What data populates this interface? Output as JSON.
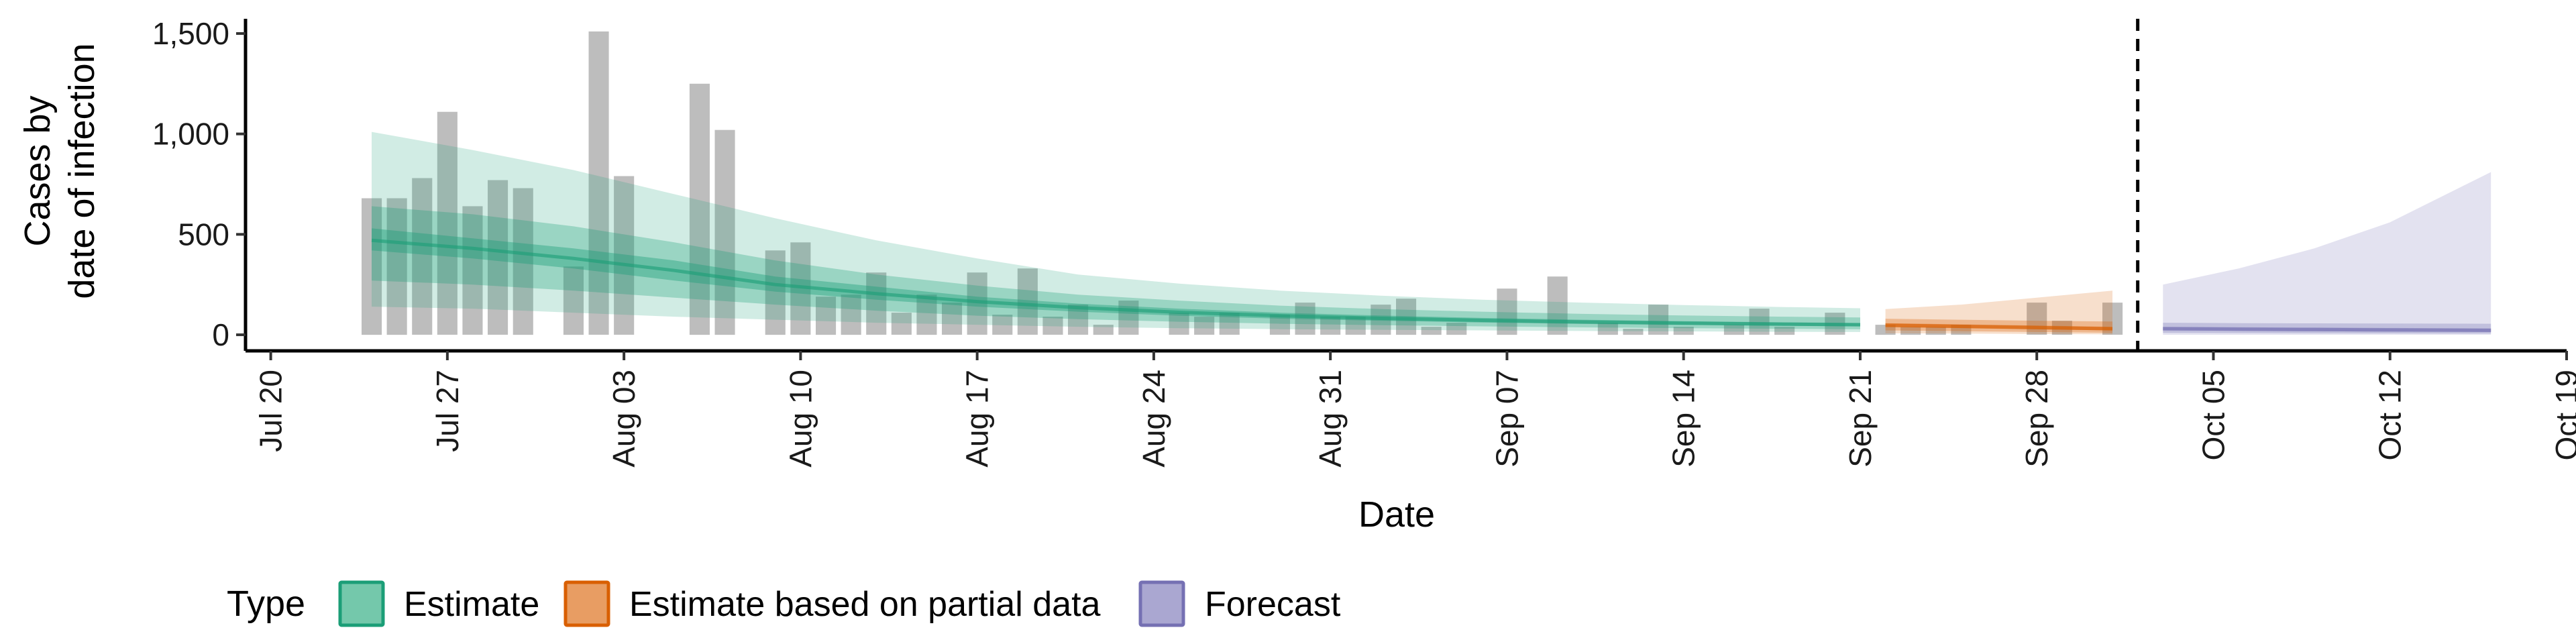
{
  "chart_data": {
    "type": "bar",
    "xlabel": "Date",
    "ylabel_lines": [
      "Cases by",
      "date of infection"
    ],
    "xlim": [
      "2020-07-19",
      "2020-10-19"
    ],
    "ylim": [
      -80,
      1600
    ],
    "x_ticks": [
      {
        "date": "2020-07-20",
        "label": "Jul 20"
      },
      {
        "date": "2020-07-27",
        "label": "Jul 27"
      },
      {
        "date": "2020-08-03",
        "label": "Aug 03"
      },
      {
        "date": "2020-08-10",
        "label": "Aug 10"
      },
      {
        "date": "2020-08-17",
        "label": "Aug 17"
      },
      {
        "date": "2020-08-24",
        "label": "Aug 24"
      },
      {
        "date": "2020-08-31",
        "label": "Aug 31"
      },
      {
        "date": "2020-09-07",
        "label": "Sep 07"
      },
      {
        "date": "2020-09-14",
        "label": "Sep 14"
      },
      {
        "date": "2020-09-21",
        "label": "Sep 21"
      },
      {
        "date": "2020-09-28",
        "label": "Sep 28"
      },
      {
        "date": "2020-10-05",
        "label": "Oct 05"
      },
      {
        "date": "2020-10-12",
        "label": "Oct 12"
      },
      {
        "date": "2020-10-19",
        "label": "Oct 19"
      }
    ],
    "y_ticks": [
      {
        "value": 0,
        "label": "0"
      },
      {
        "value": 500,
        "label": "500"
      },
      {
        "value": 1000,
        "label": "1,000"
      },
      {
        "value": 1500,
        "label": "1,500"
      }
    ],
    "cases": {
      "dates": [
        "2020-07-24",
        "2020-07-25",
        "2020-07-26",
        "2020-07-27",
        "2020-07-28",
        "2020-07-29",
        "2020-07-30",
        "2020-07-31",
        "2020-08-01",
        "2020-08-02",
        "2020-08-03",
        "2020-08-04",
        "2020-08-05",
        "2020-08-06",
        "2020-08-07",
        "2020-08-08",
        "2020-08-09",
        "2020-08-10",
        "2020-08-11",
        "2020-08-12",
        "2020-08-13",
        "2020-08-14",
        "2020-08-15",
        "2020-08-16",
        "2020-08-17",
        "2020-08-18",
        "2020-08-19",
        "2020-08-20",
        "2020-08-21",
        "2020-08-22",
        "2020-08-23",
        "2020-08-24",
        "2020-08-25",
        "2020-08-26",
        "2020-08-27",
        "2020-08-28",
        "2020-08-29",
        "2020-08-30",
        "2020-08-31",
        "2020-09-01",
        "2020-09-02",
        "2020-09-03",
        "2020-09-04",
        "2020-09-05",
        "2020-09-06",
        "2020-09-07",
        "2020-09-08",
        "2020-09-09",
        "2020-09-10",
        "2020-09-11",
        "2020-09-12",
        "2020-09-13",
        "2020-09-14",
        "2020-09-15",
        "2020-09-16",
        "2020-09-17",
        "2020-09-18",
        "2020-09-19",
        "2020-09-20",
        "2020-09-21",
        "2020-09-22",
        "2020-09-23",
        "2020-09-24",
        "2020-09-25",
        "2020-09-26",
        "2020-09-27",
        "2020-09-28",
        "2020-09-29",
        "2020-09-30",
        "2020-10-01"
      ],
      "values": [
        680,
        680,
        780,
        1110,
        640,
        770,
        730,
        0,
        340,
        1510,
        790,
        0,
        0,
        1250,
        1020,
        0,
        420,
        460,
        190,
        200,
        310,
        110,
        200,
        160,
        310,
        100,
        330,
        90,
        150,
        50,
        170,
        0,
        110,
        90,
        110,
        0,
        100,
        160,
        90,
        90,
        150,
        180,
        40,
        60,
        0,
        230,
        0,
        290,
        0,
        60,
        30,
        150,
        40,
        0,
        50,
        130,
        40,
        0,
        110,
        0,
        50,
        40,
        40,
        50,
        0,
        0,
        160,
        70,
        0,
        160
      ],
      "color": "#bdbdbd"
    },
    "vline_date": "2020-10-02",
    "series": [
      {
        "name": "Estimate",
        "color": "#1b9e77",
        "points": [
          {
            "date": "2020-07-24",
            "median": 470,
            "lo50": 420,
            "hi50": 530,
            "lo90": 270,
            "hi90": 640,
            "lo95": 140,
            "hi95": 1010
          },
          {
            "date": "2020-07-28",
            "median": 430,
            "lo50": 380,
            "hi50": 480,
            "lo90": 250,
            "hi90": 600,
            "lo95": 130,
            "hi95": 920
          },
          {
            "date": "2020-08-01",
            "median": 380,
            "lo50": 330,
            "hi50": 430,
            "lo90": 220,
            "hi90": 540,
            "lo95": 110,
            "hi95": 820
          },
          {
            "date": "2020-08-05",
            "median": 320,
            "lo50": 270,
            "hi50": 370,
            "lo90": 185,
            "hi90": 460,
            "lo95": 90,
            "hi95": 700
          },
          {
            "date": "2020-08-09",
            "median": 250,
            "lo50": 215,
            "hi50": 290,
            "lo90": 150,
            "hi90": 370,
            "lo95": 75,
            "hi95": 580
          },
          {
            "date": "2020-08-13",
            "median": 205,
            "lo50": 175,
            "hi50": 240,
            "lo90": 120,
            "hi90": 300,
            "lo95": 60,
            "hi95": 470
          },
          {
            "date": "2020-08-17",
            "median": 165,
            "lo50": 140,
            "hi50": 190,
            "lo90": 95,
            "hi90": 245,
            "lo95": 50,
            "hi95": 380
          },
          {
            "date": "2020-08-21",
            "median": 135,
            "lo50": 115,
            "hi50": 155,
            "lo90": 78,
            "hi90": 200,
            "lo95": 40,
            "hi95": 300
          },
          {
            "date": "2020-08-25",
            "median": 112,
            "lo50": 95,
            "hi50": 130,
            "lo90": 65,
            "hi90": 170,
            "lo95": 33,
            "hi95": 255
          },
          {
            "date": "2020-08-29",
            "median": 95,
            "lo50": 80,
            "hi50": 110,
            "lo90": 55,
            "hi90": 145,
            "lo95": 28,
            "hi95": 220
          },
          {
            "date": "2020-09-02",
            "median": 82,
            "lo50": 70,
            "hi50": 96,
            "lo90": 48,
            "hi90": 128,
            "lo95": 25,
            "hi95": 195
          },
          {
            "date": "2020-09-06",
            "median": 72,
            "lo50": 61,
            "hi50": 84,
            "lo90": 42,
            "hi90": 115,
            "lo95": 22,
            "hi95": 175
          },
          {
            "date": "2020-09-10",
            "median": 64,
            "lo50": 54,
            "hi50": 75,
            "lo90": 37,
            "hi90": 104,
            "lo95": 19,
            "hi95": 160
          },
          {
            "date": "2020-09-14",
            "median": 58,
            "lo50": 49,
            "hi50": 68,
            "lo90": 33,
            "hi90": 96,
            "lo95": 17,
            "hi95": 148
          },
          {
            "date": "2020-09-18",
            "median": 53,
            "lo50": 45,
            "hi50": 62,
            "lo90": 30,
            "hi90": 90,
            "lo95": 15,
            "hi95": 138
          },
          {
            "date": "2020-09-21",
            "median": 50,
            "lo50": 42,
            "hi50": 59,
            "lo90": 28,
            "hi90": 86,
            "lo95": 14,
            "hi95": 132
          }
        ]
      },
      {
        "name": "Estimate based on partial data",
        "color": "#d95f02",
        "points": [
          {
            "date": "2020-09-22",
            "median": 48,
            "lo50": 38,
            "hi50": 58,
            "lo90": 22,
            "hi90": 80,
            "lo95": 8,
            "hi95": 128
          },
          {
            "date": "2020-09-25",
            "median": 42,
            "lo50": 33,
            "hi50": 52,
            "lo90": 18,
            "hi90": 75,
            "lo95": 6,
            "hi95": 150
          },
          {
            "date": "2020-09-28",
            "median": 36,
            "lo50": 27,
            "hi50": 46,
            "lo90": 14,
            "hi90": 70,
            "lo95": 4,
            "hi95": 185
          },
          {
            "date": "2020-10-01",
            "median": 30,
            "lo50": 22,
            "hi50": 40,
            "lo90": 10,
            "hi90": 66,
            "lo95": 2,
            "hi95": 220
          }
        ]
      },
      {
        "name": "Forecast",
        "color": "#7570b3",
        "points": [
          {
            "date": "2020-10-03",
            "median": 30,
            "lo50": 22,
            "hi50": 40,
            "lo90": 10,
            "hi90": 60,
            "lo95": 0,
            "hi95": 250
          },
          {
            "date": "2020-10-06",
            "median": 28,
            "lo50": 20,
            "hi50": 38,
            "lo90": 9,
            "hi90": 58,
            "lo95": 0,
            "hi95": 330
          },
          {
            "date": "2020-10-09",
            "median": 26,
            "lo50": 18,
            "hi50": 36,
            "lo90": 8,
            "hi90": 57,
            "lo95": 0,
            "hi95": 430
          },
          {
            "date": "2020-10-12",
            "median": 24,
            "lo50": 16,
            "hi50": 34,
            "lo90": 7,
            "hi90": 56,
            "lo95": 0,
            "hi95": 560
          },
          {
            "date": "2020-10-16",
            "median": 22,
            "lo50": 15,
            "hi50": 32,
            "lo90": 6,
            "hi90": 55,
            "lo95": 0,
            "hi95": 810
          }
        ]
      }
    ],
    "legend": {
      "title": "Type",
      "position": "bottom",
      "entries": [
        {
          "label": "Estimate",
          "fill": "#74c8ab",
          "border": "#1b9e77"
        },
        {
          "label": "Estimate based on partial data",
          "fill": "#e89d63",
          "border": "#d95f02"
        },
        {
          "label": "Forecast",
          "fill": "#aaa7d1",
          "border": "#7570b3"
        }
      ]
    },
    "grid": false
  }
}
